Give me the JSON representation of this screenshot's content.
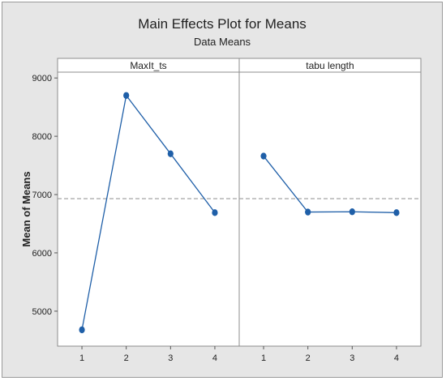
{
  "chart_data": {
    "type": "line",
    "title": "Main Effects Plot for Means",
    "subtitle": "Data Means",
    "ylabel": "Mean of Means",
    "ylim": [
      4400,
      9100
    ],
    "yticks": [
      5000,
      6000,
      7000,
      8000,
      9000
    ],
    "reference_line": 6930,
    "grid": false,
    "series_color": "#1f5fa8",
    "reference_color": "#9a9a9a",
    "panels": [
      {
        "name": "MaxIt_ts",
        "x": [
          "1",
          "2",
          "3",
          "4"
        ],
        "values": [
          4680,
          8700,
          7700,
          6690
        ]
      },
      {
        "name": "tabu length",
        "x": [
          "1",
          "2",
          "3",
          "4"
        ],
        "values": [
          7660,
          6700,
          6705,
          6690
        ]
      }
    ]
  }
}
